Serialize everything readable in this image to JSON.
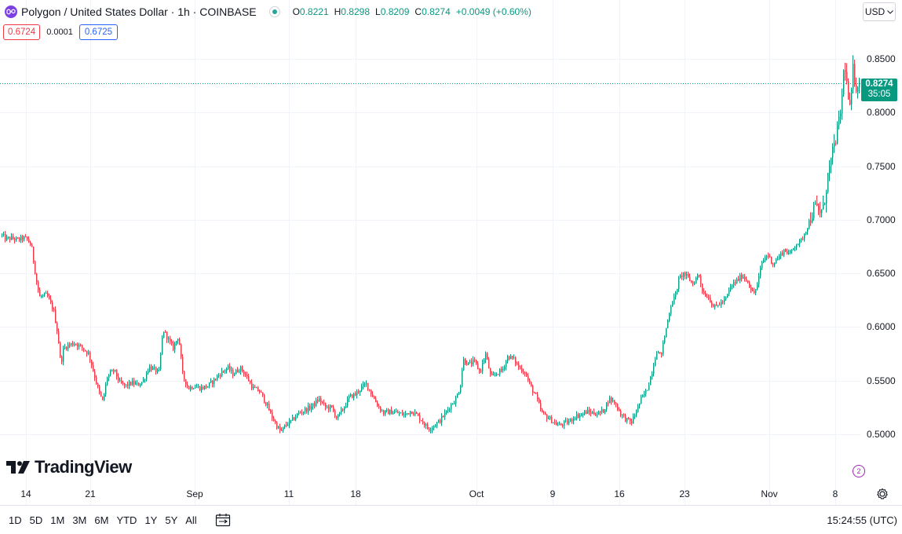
{
  "header": {
    "symbol_title": "Polygon / United States Dollar · 1h · COINBASE",
    "ohlc": {
      "o_label": "O",
      "o_value": "0.8221",
      "h_label": "H",
      "h_value": "0.8298",
      "l_label": "L",
      "l_value": "0.8209",
      "c_label": "C",
      "c_value": "0.8274",
      "change": "+0.0049 (+0.60%)"
    }
  },
  "bidask": {
    "bid": "0.6724",
    "spread": "0.0001",
    "ask": "0.6725"
  },
  "currency": {
    "label": "USD",
    "icon": "chevron-down-icon"
  },
  "price_tag": {
    "price": "0.8274",
    "countdown": "35:05"
  },
  "logo": {
    "text": "TradingView"
  },
  "bottom_bar": {
    "ranges": [
      "1D",
      "5D",
      "1M",
      "3M",
      "6M",
      "YTD",
      "1Y",
      "5Y",
      "All"
    ],
    "date_range_icon": "calendar-range-icon",
    "time": "15:24:55 (UTC)"
  },
  "colors": {
    "up": "#089981",
    "down": "#f23645",
    "grid": "#f0f3fa",
    "price_line": "#089981"
  },
  "chart_data": {
    "type": "candlestick",
    "interval": "1h",
    "ylim": [
      0.475,
      0.875
    ],
    "y_ticks": [
      "0.8500",
      "0.8000",
      "0.7500",
      "0.7000",
      "0.6500",
      "0.6000",
      "0.5500",
      "0.5000"
    ],
    "x_ticks": [
      "14",
      "21",
      "Sep",
      "11",
      "18",
      "Oct",
      "9",
      "16",
      "23",
      "Nov",
      "8"
    ],
    "last_price": 0.8274,
    "path_points": [
      [
        0.0,
        0.687
      ],
      [
        0.4,
        0.682
      ],
      [
        0.8,
        0.683
      ],
      [
        1.2,
        0.681
      ],
      [
        1.6,
        0.683
      ],
      [
        1.9,
        0.682
      ],
      [
        2.2,
        0.676
      ],
      [
        2.6,
        0.64
      ],
      [
        2.8,
        0.628
      ],
      [
        3.3,
        0.63
      ],
      [
        3.8,
        0.615
      ],
      [
        4.1,
        0.592
      ],
      [
        4.3,
        0.565
      ],
      [
        4.5,
        0.58
      ],
      [
        4.8,
        0.583
      ],
      [
        5.3,
        0.585
      ],
      [
        5.8,
        0.581
      ],
      [
        6.3,
        0.575
      ],
      [
        6.8,
        0.55
      ],
      [
        7.0,
        0.54
      ],
      [
        7.3,
        0.53
      ],
      [
        7.6,
        0.553
      ],
      [
        8.1,
        0.56
      ],
      [
        8.5,
        0.548
      ],
      [
        8.9,
        0.545
      ],
      [
        9.4,
        0.548
      ],
      [
        9.8,
        0.546
      ],
      [
        10.2,
        0.55
      ],
      [
        10.6,
        0.563
      ],
      [
        11.0,
        0.56
      ],
      [
        11.3,
        0.557
      ],
      [
        11.6,
        0.598
      ],
      [
        11.9,
        0.59
      ],
      [
        12.3,
        0.58
      ],
      [
        12.7,
        0.592
      ],
      [
        13.0,
        0.555
      ],
      [
        13.4,
        0.543
      ],
      [
        13.8,
        0.545
      ],
      [
        14.3,
        0.543
      ],
      [
        14.8,
        0.545
      ],
      [
        15.2,
        0.55
      ],
      [
        15.7,
        0.557
      ],
      [
        16.2,
        0.562
      ],
      [
        16.6,
        0.556
      ],
      [
        17.1,
        0.562
      ],
      [
        17.5,
        0.555
      ],
      [
        18.0,
        0.543
      ],
      [
        18.5,
        0.54
      ],
      [
        18.9,
        0.53
      ],
      [
        19.3,
        0.518
      ],
      [
        19.7,
        0.508
      ],
      [
        20.0,
        0.502
      ],
      [
        20.3,
        0.508
      ],
      [
        20.8,
        0.513
      ],
      [
        21.3,
        0.52
      ],
      [
        21.8,
        0.523
      ],
      [
        22.3,
        0.527
      ],
      [
        22.7,
        0.533
      ],
      [
        23.2,
        0.525
      ],
      [
        23.6,
        0.525
      ],
      [
        24.0,
        0.515
      ],
      [
        24.5,
        0.525
      ],
      [
        24.9,
        0.535
      ],
      [
        25.3,
        0.537
      ],
      [
        25.7,
        0.543
      ],
      [
        26.1,
        0.547
      ],
      [
        26.5,
        0.537
      ],
      [
        26.9,
        0.527
      ],
      [
        27.3,
        0.52
      ],
      [
        27.8,
        0.521
      ],
      [
        28.3,
        0.52
      ],
      [
        28.8,
        0.518
      ],
      [
        29.3,
        0.522
      ],
      [
        29.7,
        0.518
      ],
      [
        30.1,
        0.512
      ],
      [
        30.5,
        0.505
      ],
      [
        30.9,
        0.508
      ],
      [
        31.3,
        0.512
      ],
      [
        31.7,
        0.519
      ],
      [
        32.1,
        0.527
      ],
      [
        32.5,
        0.533
      ],
      [
        32.8,
        0.545
      ],
      [
        33.0,
        0.57
      ],
      [
        33.4,
        0.565
      ],
      [
        33.8,
        0.568
      ],
      [
        34.2,
        0.558
      ],
      [
        34.6,
        0.575
      ],
      [
        35.0,
        0.552
      ],
      [
        35.4,
        0.557
      ],
      [
        35.8,
        0.56
      ],
      [
        36.2,
        0.573
      ],
      [
        36.6,
        0.57
      ],
      [
        37.0,
        0.562
      ],
      [
        37.4,
        0.558
      ],
      [
        37.8,
        0.545
      ],
      [
        38.2,
        0.535
      ],
      [
        38.6,
        0.52
      ],
      [
        39.0,
        0.516
      ],
      [
        39.4,
        0.512
      ],
      [
        39.8,
        0.508
      ],
      [
        40.2,
        0.51
      ],
      [
        40.6,
        0.512
      ],
      [
        41.0,
        0.517
      ],
      [
        41.4,
        0.518
      ],
      [
        41.8,
        0.521
      ],
      [
        42.2,
        0.52
      ],
      [
        42.6,
        0.519
      ],
      [
        43.0,
        0.522
      ],
      [
        43.4,
        0.533
      ],
      [
        43.8,
        0.53
      ],
      [
        44.2,
        0.52
      ],
      [
        44.6,
        0.514
      ],
      [
        45.0,
        0.511
      ],
      [
        45.3,
        0.52
      ],
      [
        45.7,
        0.533
      ],
      [
        46.1,
        0.541
      ],
      [
        46.5,
        0.56
      ],
      [
        46.8,
        0.578
      ],
      [
        47.1,
        0.573
      ],
      [
        47.5,
        0.6
      ],
      [
        47.8,
        0.62
      ],
      [
        48.1,
        0.628
      ],
      [
        48.4,
        0.645
      ],
      [
        48.7,
        0.65
      ],
      [
        49.1,
        0.645
      ],
      [
        49.4,
        0.64
      ],
      [
        49.8,
        0.65
      ],
      [
        50.1,
        0.632
      ],
      [
        50.5,
        0.628
      ],
      [
        50.9,
        0.618
      ],
      [
        51.3,
        0.622
      ],
      [
        51.7,
        0.625
      ],
      [
        52.1,
        0.638
      ],
      [
        52.5,
        0.643
      ],
      [
        52.9,
        0.648
      ],
      [
        53.3,
        0.643
      ],
      [
        53.7,
        0.63
      ],
      [
        54.0,
        0.64
      ],
      [
        54.3,
        0.66
      ],
      [
        54.7,
        0.668
      ],
      [
        55.1,
        0.659
      ],
      [
        55.5,
        0.665
      ],
      [
        55.9,
        0.672
      ],
      [
        56.3,
        0.668
      ],
      [
        56.7,
        0.677
      ],
      [
        57.1,
        0.68
      ],
      [
        57.5,
        0.692
      ],
      [
        57.8,
        0.703
      ],
      [
        58.1,
        0.712
      ],
      [
        58.4,
        0.707
      ],
      [
        58.7,
        0.71
      ],
      [
        59.0,
        0.74
      ],
      [
        59.3,
        0.758
      ],
      [
        59.6,
        0.778
      ],
      [
        59.8,
        0.79
      ],
      [
        60.0,
        0.81
      ],
      [
        60.2,
        0.85
      ],
      [
        60.4,
        0.82
      ],
      [
        60.6,
        0.8
      ],
      [
        60.8,
        0.84
      ],
      [
        61.0,
        0.825
      ],
      [
        61.2,
        0.8274
      ]
    ]
  }
}
